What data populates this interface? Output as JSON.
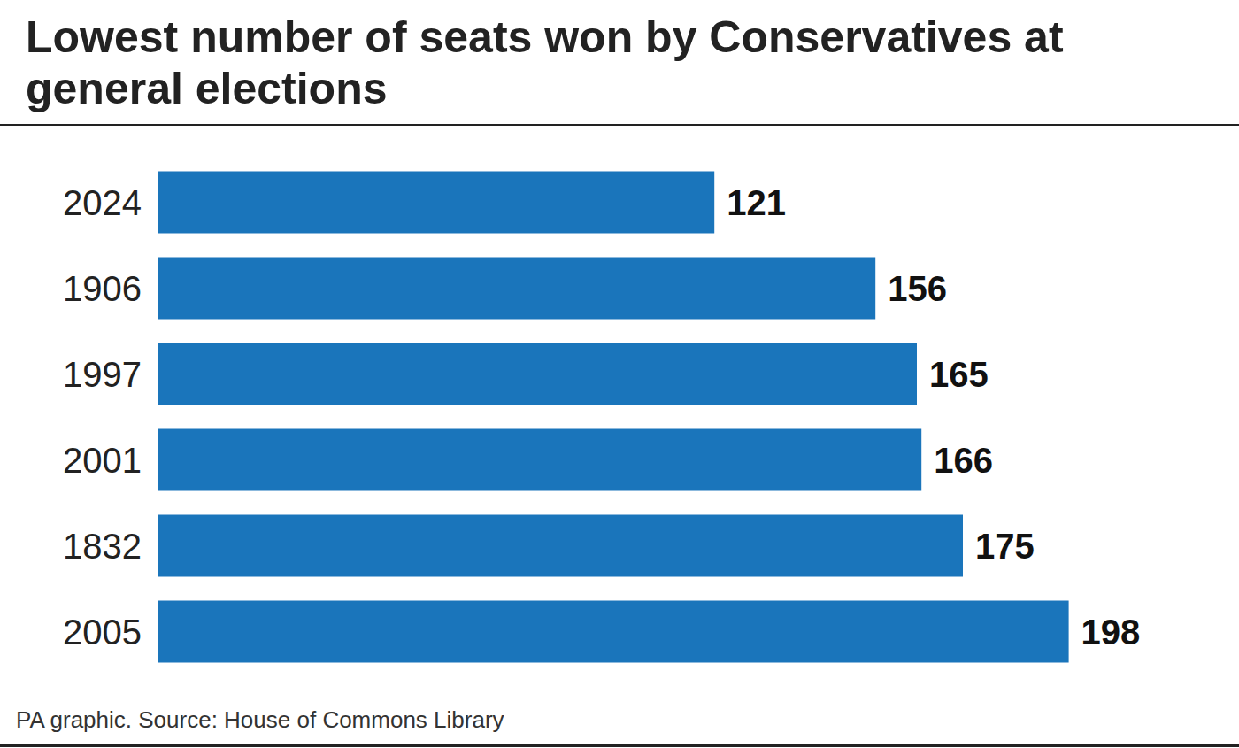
{
  "chart_data": {
    "type": "bar",
    "orientation": "horizontal",
    "title": "Lowest number of seats won by Conservatives at general elections",
    "source": "PA graphic. Source: House of Commons Library",
    "categories": [
      "2024",
      "1906",
      "1997",
      "2001",
      "1832",
      "2005"
    ],
    "values": [
      121,
      156,
      165,
      166,
      175,
      198
    ],
    "color": "#1a75bb",
    "xlim": [
      0,
      230
    ],
    "data_labels": true,
    "tick_labels": "y",
    "grid": false
  }
}
